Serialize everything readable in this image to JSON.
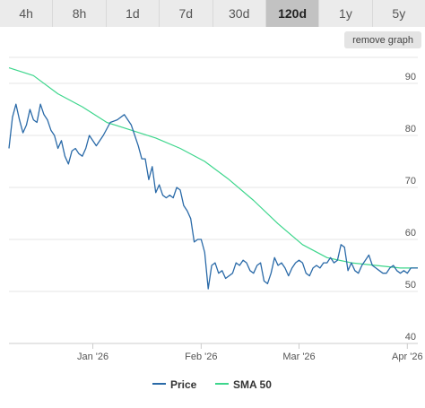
{
  "range_selector": {
    "buttons": [
      "4h",
      "8h",
      "1d",
      "7d",
      "30d",
      "120d",
      "1y",
      "5y"
    ],
    "active": "120d"
  },
  "remove_graph_label": "remove graph",
  "colors": {
    "price": "#2a6aa8",
    "sma": "#3dd68c",
    "grid": "#e6e6e6"
  },
  "chart_data": {
    "type": "line",
    "x_type": "date",
    "xlim": [
      "2025-12-08",
      "2026-04-04"
    ],
    "ylim": [
      40,
      95
    ],
    "y_ticks": [
      40,
      50,
      60,
      70,
      80,
      90
    ],
    "x_ticks": [
      {
        "date": "2026-01-01",
        "label": "Jan '26"
      },
      {
        "date": "2026-02-01",
        "label": "Feb '26"
      },
      {
        "date": "2026-03-01",
        "label": "Mar '26"
      },
      {
        "date": "2026-04-01",
        "label": "Apr '26"
      }
    ],
    "grid": "horizontal",
    "legend_position": "bottom-center",
    "series": [
      {
        "name": "Price",
        "x": [
          "2025-12-08",
          "2025-12-09",
          "2025-12-10",
          "2025-12-11",
          "2025-12-12",
          "2025-12-13",
          "2025-12-14",
          "2025-12-15",
          "2025-12-16",
          "2025-12-17",
          "2025-12-18",
          "2025-12-19",
          "2025-12-20",
          "2025-12-21",
          "2025-12-22",
          "2025-12-23",
          "2025-12-24",
          "2025-12-25",
          "2025-12-26",
          "2025-12-27",
          "2025-12-28",
          "2025-12-29",
          "2025-12-30",
          "2025-12-31",
          "2026-01-02",
          "2026-01-04",
          "2026-01-06",
          "2026-01-08",
          "2026-01-10",
          "2026-01-12",
          "2026-01-14",
          "2026-01-15",
          "2026-01-16",
          "2026-01-17",
          "2026-01-18",
          "2026-01-19",
          "2026-01-20",
          "2026-01-21",
          "2026-01-22",
          "2026-01-23",
          "2026-01-24",
          "2026-01-25",
          "2026-01-26",
          "2026-01-27",
          "2026-01-28",
          "2026-01-29",
          "2026-01-30",
          "2026-01-31",
          "2026-02-01",
          "2026-02-02",
          "2026-02-03",
          "2026-02-04",
          "2026-02-05",
          "2026-02-06",
          "2026-02-07",
          "2026-02-08",
          "2026-02-09",
          "2026-02-10",
          "2026-02-11",
          "2026-02-12",
          "2026-02-13",
          "2026-02-14",
          "2026-02-15",
          "2026-02-16",
          "2026-02-17",
          "2026-02-18",
          "2026-02-19",
          "2026-02-20",
          "2026-02-21",
          "2026-02-22",
          "2026-02-23",
          "2026-02-24",
          "2026-02-25",
          "2026-02-26",
          "2026-02-27",
          "2026-02-28",
          "2026-03-01",
          "2026-03-02",
          "2026-03-03",
          "2026-03-04",
          "2026-03-05",
          "2026-03-06",
          "2026-03-07",
          "2026-03-08",
          "2026-03-09",
          "2026-03-10",
          "2026-03-11",
          "2026-03-12",
          "2026-03-13",
          "2026-03-14",
          "2026-03-15",
          "2026-03-16",
          "2026-03-17",
          "2026-03-18",
          "2026-03-19",
          "2026-03-20",
          "2026-03-21",
          "2026-03-22",
          "2026-03-23",
          "2026-03-24",
          "2026-03-25",
          "2026-03-26",
          "2026-03-27",
          "2026-03-28",
          "2026-03-29",
          "2026-03-30",
          "2026-03-31",
          "2026-04-01",
          "2026-04-02",
          "2026-04-03",
          "2026-04-04"
        ],
        "y": [
          77.5,
          83.5,
          86,
          83,
          80.5,
          82,
          85,
          83,
          82.5,
          86,
          84,
          83,
          81,
          80,
          77.5,
          79,
          76,
          74.5,
          77,
          77.5,
          76.5,
          76,
          77.5,
          80,
          78,
          80,
          82.5,
          83,
          84,
          82,
          78,
          75.5,
          75.5,
          71.5,
          74,
          69,
          70.5,
          68.5,
          68,
          68.5,
          68,
          70,
          69.5,
          66.5,
          65.5,
          64,
          59.5,
          60,
          60,
          57.5,
          50.5,
          55,
          55.5,
          53.5,
          54,
          52.5,
          53,
          53.5,
          55.5,
          55,
          56,
          55.5,
          54,
          53.5,
          55,
          55.5,
          52,
          51.5,
          53.5,
          56.5,
          55,
          55.5,
          54.5,
          53,
          54.5,
          55.5,
          56,
          55.5,
          53.5,
          53,
          54.5,
          55,
          54.5,
          55.5,
          55.5,
          56.5,
          55.5,
          56,
          59,
          58.5,
          54,
          55.5,
          54,
          53.5,
          55,
          56,
          57,
          55,
          54.5,
          54,
          53.5,
          53.5,
          54.5,
          55,
          54,
          53.5,
          54,
          53.5,
          54.5,
          54.5,
          54.5
        ]
      },
      {
        "name": "SMA 50",
        "x": [
          "2025-12-08",
          "2025-12-15",
          "2025-12-22",
          "2025-12-29",
          "2026-01-05",
          "2026-01-12",
          "2026-01-19",
          "2026-01-26",
          "2026-02-02",
          "2026-02-09",
          "2026-02-16",
          "2026-02-23",
          "2026-03-02",
          "2026-03-09",
          "2026-03-16",
          "2026-03-23",
          "2026-03-30",
          "2026-04-04"
        ],
        "y": [
          93,
          91.5,
          88,
          85.5,
          82.5,
          81,
          79.5,
          77.5,
          75,
          71.5,
          67.5,
          63,
          59,
          56.5,
          55.5,
          55,
          54.5,
          54.5
        ]
      }
    ]
  }
}
